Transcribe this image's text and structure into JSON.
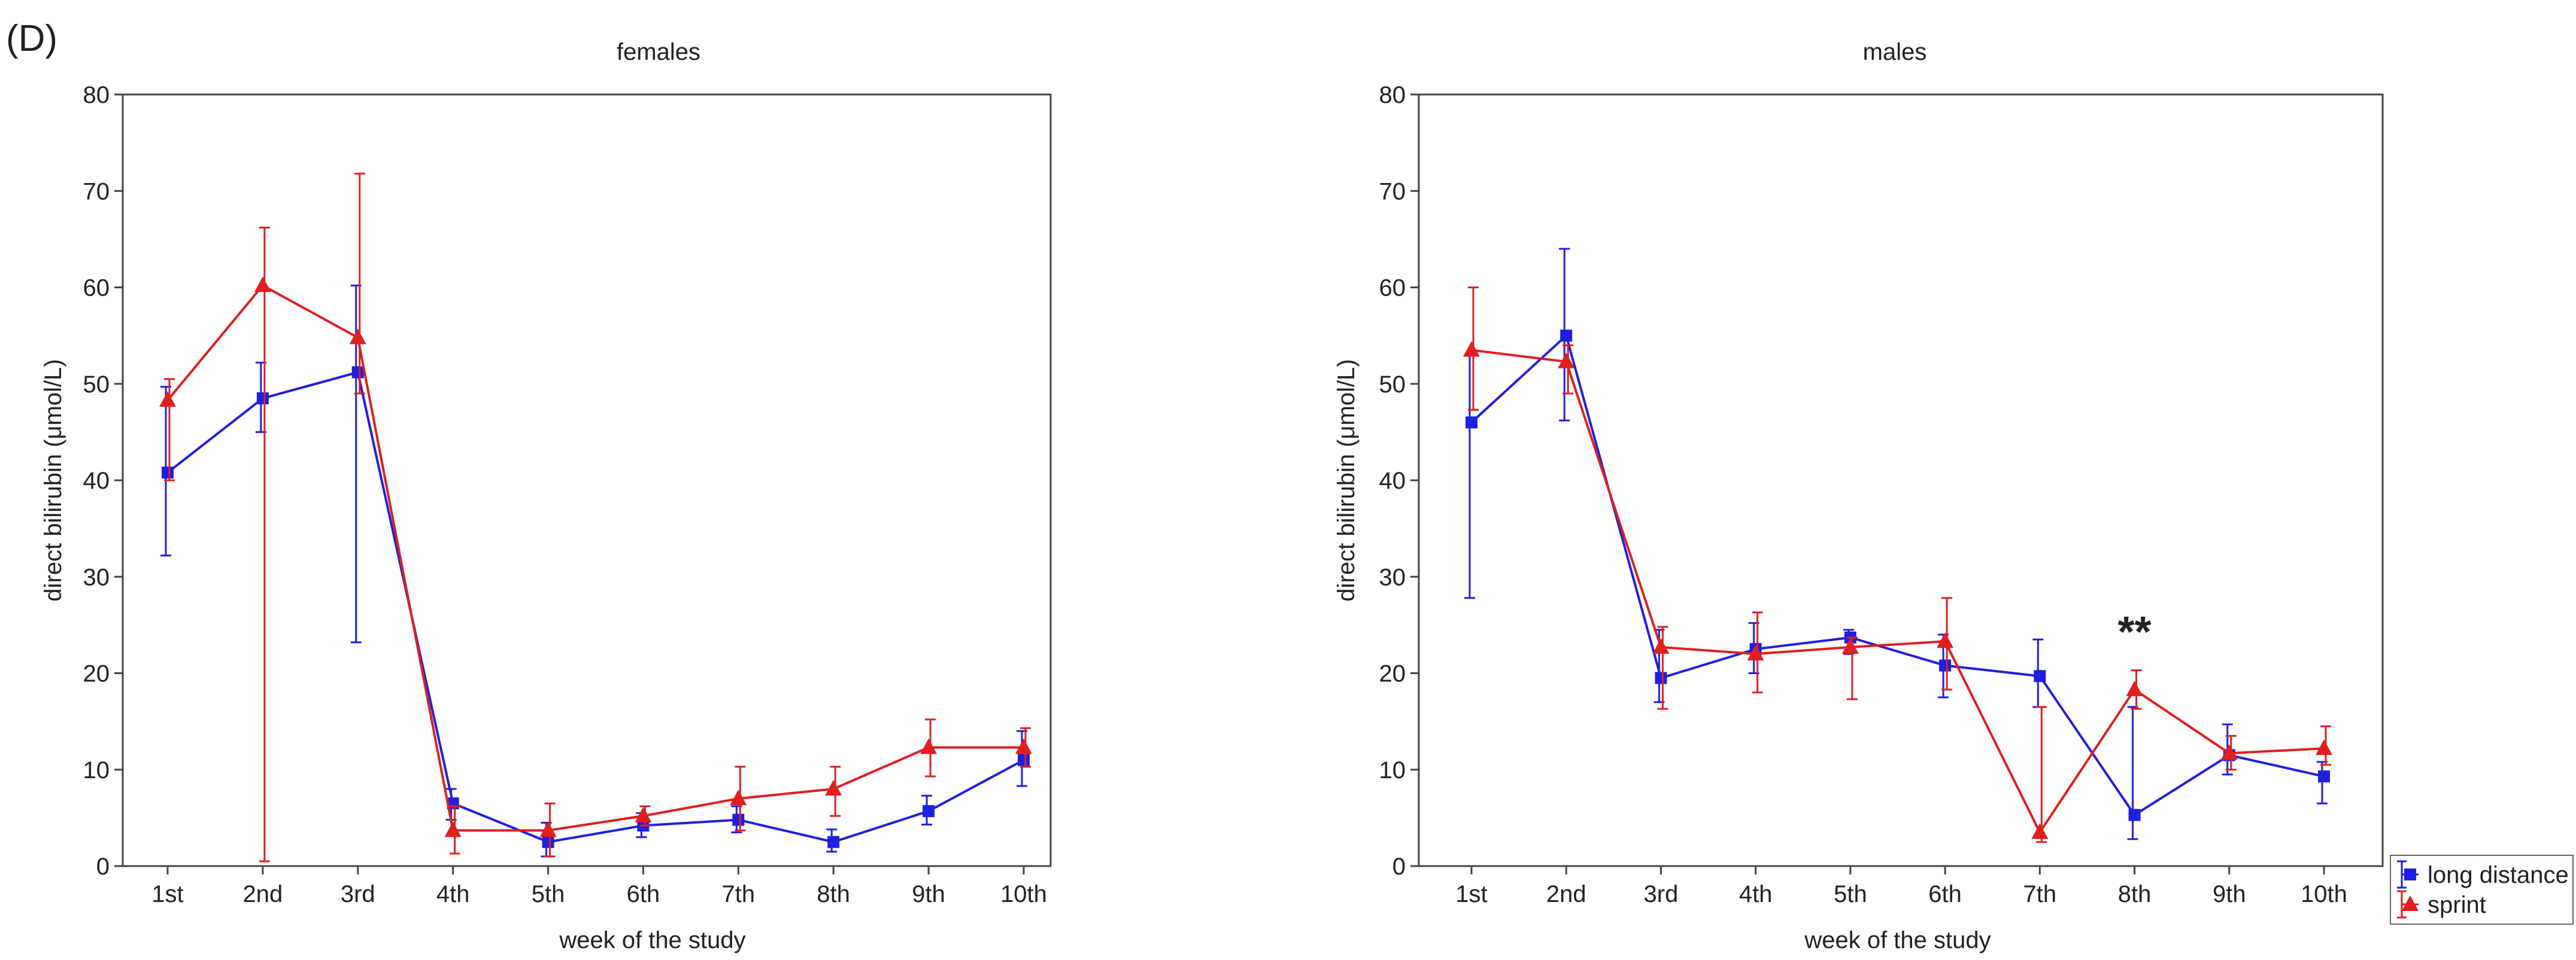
{
  "panel_label": "(D)",
  "chart_data": [
    {
      "type": "line",
      "title": "females",
      "xlabel": "week of the study",
      "ylabel": "direct bilirubin (μmol/L)",
      "ylim": [
        0,
        80
      ],
      "yticks": [
        0,
        10,
        20,
        30,
        40,
        50,
        60,
        70,
        80
      ],
      "categories": [
        "1st",
        "2nd",
        "3rd",
        "4th",
        "5th",
        "6th",
        "7th",
        "8th",
        "9th",
        "10th"
      ],
      "annotations": [],
      "series": [
        {
          "name": "long distance",
          "color": "#1f1fe0",
          "marker": "square",
          "values": [
            40.8,
            48.5,
            51.2,
            6.5,
            2.5,
            4.2,
            4.8,
            2.5,
            5.7,
            11.0
          ],
          "err_low": [
            32.2,
            45.0,
            23.2,
            4.8,
            1.0,
            3.0,
            3.5,
            1.5,
            4.3,
            8.3
          ],
          "err_high": [
            49.7,
            52.2,
            60.2,
            8.0,
            4.5,
            5.5,
            6.2,
            3.8,
            7.3,
            14.0
          ]
        },
        {
          "name": "sprint",
          "color": "#e01f1f",
          "marker": "triangle",
          "values": [
            48.3,
            60.2,
            54.8,
            3.7,
            3.7,
            5.2,
            7.0,
            8.0,
            12.3,
            12.3
          ],
          "err_low": [
            40.0,
            0.5,
            49.0,
            1.3,
            1.0,
            4.2,
            3.7,
            5.2,
            9.3,
            10.3
          ],
          "err_high": [
            50.5,
            66.2,
            71.8,
            6.2,
            6.5,
            6.2,
            10.3,
            10.3,
            15.2,
            14.3
          ]
        }
      ]
    },
    {
      "type": "line",
      "title": "males",
      "xlabel": "week of the study",
      "ylabel": "direct bilirubin (μmol/L)",
      "ylim": [
        0,
        80
      ],
      "yticks": [
        0,
        10,
        20,
        30,
        40,
        50,
        60,
        70,
        80
      ],
      "categories": [
        "1st",
        "2nd",
        "3rd",
        "4th",
        "5th",
        "6th",
        "7th",
        "8th",
        "9th",
        "10th"
      ],
      "annotations": [
        {
          "text": "**",
          "at": "8th",
          "y": 24
        }
      ],
      "series": [
        {
          "name": "long distance",
          "color": "#1f1fe0",
          "marker": "square",
          "values": [
            46.0,
            55.0,
            19.5,
            22.5,
            23.7,
            20.8,
            19.7,
            5.3,
            11.5,
            9.3
          ],
          "err_low": [
            27.8,
            46.2,
            17.0,
            20.0,
            22.0,
            17.5,
            16.5,
            2.8,
            9.5,
            6.5
          ],
          "err_high": [
            53.0,
            64.0,
            24.5,
            25.2,
            24.5,
            24.0,
            23.5,
            16.5,
            14.7,
            10.8
          ]
        },
        {
          "name": "sprint",
          "color": "#e01f1f",
          "marker": "triangle",
          "values": [
            53.5,
            52.3,
            22.7,
            22.0,
            22.7,
            23.3,
            3.5,
            18.3,
            11.7,
            12.2
          ],
          "err_low": [
            47.3,
            49.0,
            16.3,
            18.0,
            17.3,
            18.3,
            2.5,
            16.3,
            10.0,
            10.5
          ],
          "err_high": [
            60.0,
            54.0,
            24.8,
            26.3,
            23.7,
            27.8,
            16.5,
            20.3,
            13.5,
            14.5
          ]
        }
      ]
    }
  ],
  "legend": {
    "placement": "bottom-right",
    "items": [
      {
        "label": "long distance",
        "color": "#1f1fe0",
        "marker": "square"
      },
      {
        "label": "sprint",
        "color": "#e01f1f",
        "marker": "triangle"
      }
    ]
  }
}
